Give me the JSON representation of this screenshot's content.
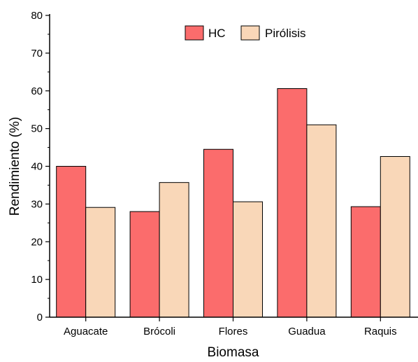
{
  "chart_data": {
    "type": "bar",
    "title": "",
    "xlabel": "Biomasa",
    "ylabel": "Rendimiento (%)",
    "categories": [
      "Aguacate",
      "Brócoli",
      "Flores",
      "Guadua",
      "Raquis"
    ],
    "series": [
      {
        "name": "HC",
        "values": [
          40.0,
          28.0,
          44.5,
          60.6,
          29.3
        ],
        "color": "#fb6c6c"
      },
      {
        "name": "Pirólisis",
        "values": [
          29.1,
          35.7,
          30.6,
          51.0,
          42.6
        ],
        "color": "#f9d7b8"
      }
    ],
    "ylim": [
      0,
      80
    ],
    "yticks": [
      0,
      10,
      20,
      30,
      40,
      50,
      60,
      70,
      80
    ],
    "grid": false,
    "legend_position": "top-center"
  }
}
